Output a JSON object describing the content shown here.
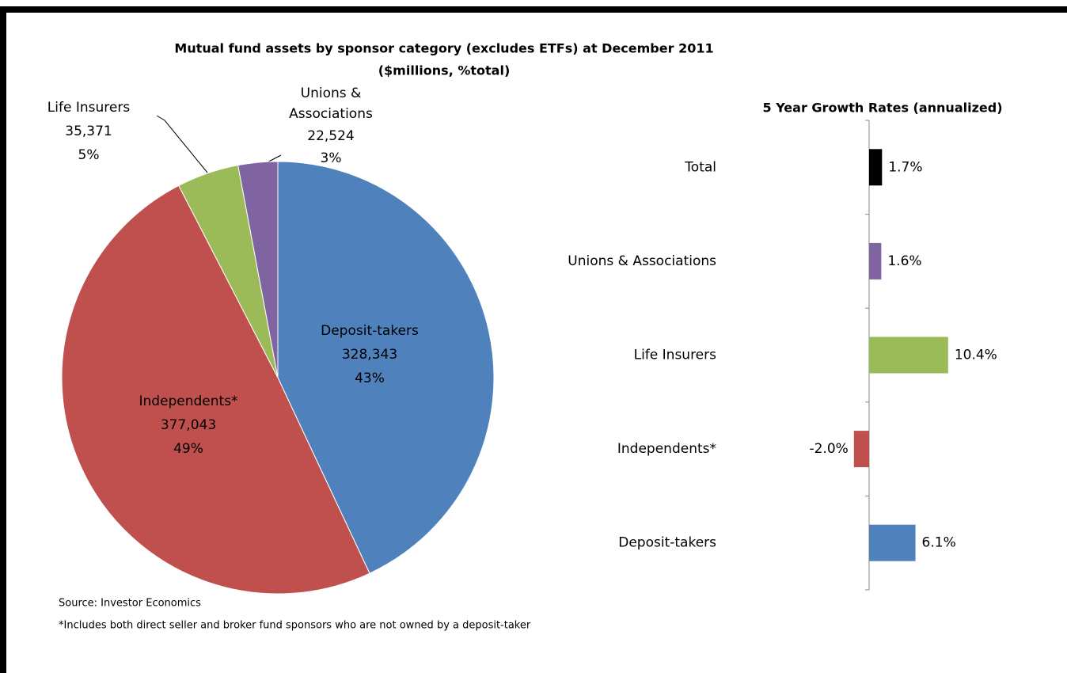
{
  "chart_data": [
    {
      "type": "pie",
      "title": "Mutual fund assets by sponsor category (excludes ETFs) at December 2011",
      "subtitle": "($millions, %total)",
      "categories": [
        "Deposit-takers",
        "Independents*",
        "Life Insurers",
        "Unions & Associations"
      ],
      "values": [
        328343,
        377043,
        35371,
        22524
      ],
      "value_labels": [
        "328,343",
        "377,043",
        "35,371",
        "22,524"
      ],
      "percents": [
        43,
        49,
        5,
        3
      ],
      "percent_labels": [
        "43%",
        "49%",
        "5%",
        "3%"
      ],
      "colors": [
        "#4f81bd",
        "#c0504d",
        "#9bbb59",
        "#8064a2"
      ],
      "notes": [
        "Source: Investor Economics",
        "*Includes both direct seller and broker fund sponsors who are not owned by a deposit-taker"
      ]
    },
    {
      "type": "hbar",
      "title": "5 Year Growth Rates (annualized)",
      "categories": [
        "Total",
        "Unions & Associations",
        "Life Insurers",
        "Independents*",
        "Deposit-takers"
      ],
      "values": [
        1.7,
        1.6,
        10.4,
        -2.0,
        6.1
      ],
      "value_labels": [
        "1.7%",
        "1.6%",
        "10.4%",
        "-2.0%",
        "6.1%"
      ],
      "colors": [
        "#000000",
        "#8064a2",
        "#9bbb59",
        "#c0504d",
        "#4f81bd"
      ],
      "xlim": [
        -5,
        15
      ]
    }
  ]
}
